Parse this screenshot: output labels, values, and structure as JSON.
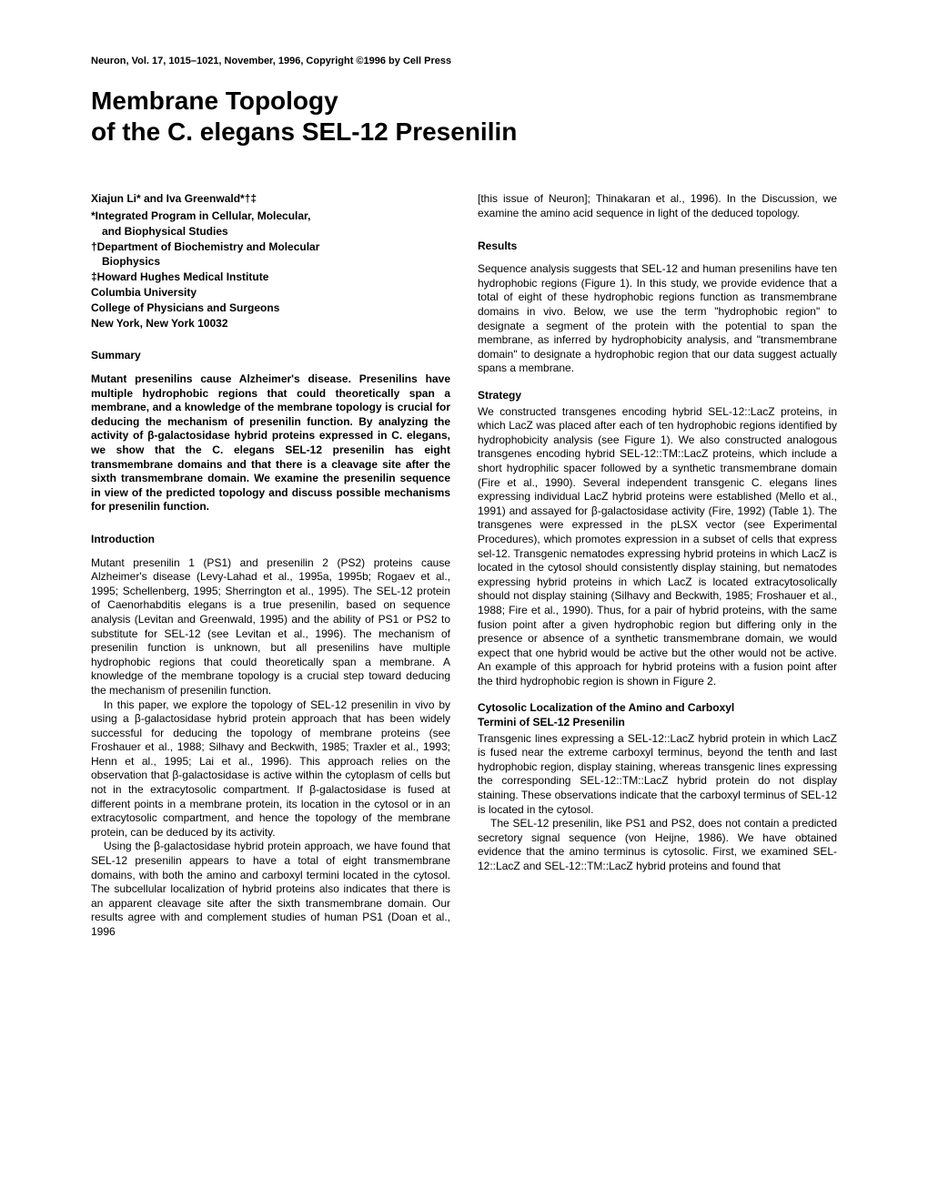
{
  "header": "Neuron, Vol. 17, 1015–1021, November, 1996, Copyright ©1996 by Cell Press",
  "title_line1": "Membrane Topology",
  "title_line2": "of the C. elegans SEL-12 Presenilin",
  "authors": "Xiajun Li* and Iva Greenwald*†‡",
  "affil1": "*Integrated Program in Cellular, Molecular,",
  "affil1b": "and Biophysical Studies",
  "affil2": "†Department of Biochemistry and Molecular",
  "affil2b": "Biophysics",
  "affil3": "‡Howard Hughes Medical Institute",
  "affil4": "Columbia University",
  "affil5": "College of Physicians and Surgeons",
  "affil6": "New York, New York 10032",
  "summary_head": "Summary",
  "summary": "Mutant presenilins cause Alzheimer's disease. Presenilins have multiple hydrophobic regions that could theoretically span a membrane, and a knowledge of the membrane topology is crucial for deducing the mechanism of presenilin function. By analyzing the activity of β-galactosidase hybrid proteins expressed in C. elegans, we show that the C. elegans SEL-12 presenilin has eight transmembrane domains and that there is a cleavage site after the sixth transmembrane domain. We examine the presenilin sequence in view of the predicted topology and discuss possible mechanisms for presenilin function.",
  "intro_head": "Introduction",
  "intro_p1": "Mutant presenilin 1 (PS1) and presenilin 2 (PS2) proteins cause Alzheimer's disease (Levy-Lahad et al., 1995a, 1995b; Rogaev et al., 1995; Schellenberg, 1995; Sherrington et al., 1995). The SEL-12 protein of Caenorhabditis elegans is a true presenilin, based on sequence analysis (Levitan and Greenwald, 1995) and the ability of PS1 or PS2 to substitute for SEL-12 (see Levitan et al., 1996). The mechanism of presenilin function is unknown, but all presenilins have multiple hydrophobic regions that could theoretically span a membrane. A knowledge of the membrane topology is a crucial step toward deducing the mechanism of presenilin function.",
  "intro_p2": "In this paper, we explore the topology of SEL-12 presenilin in vivo by using a β-galactosidase hybrid protein approach that has been widely successful for deducing the topology of membrane proteins (see Froshauer et al., 1988; Silhavy and Beckwith, 1985; Traxler et al., 1993; Henn et al., 1995; Lai et al., 1996). This approach relies on the observation that β-galactosidase is active within the cytoplasm of cells but not in the extracytosolic compartment. If β-galactosidase is fused at different points in a membrane protein, its location in the cytosol or in an extracytosolic compartment, and hence the topology of the membrane protein, can be deduced by its activity.",
  "intro_p3": "Using the β-galactosidase hybrid protein approach, we have found that SEL-12 presenilin appears to have a total of eight transmembrane domains, with both the amino and carboxyl termini located in the cytosol. The subcellular localization of hybrid proteins also indicates that there is an apparent cleavage site after the sixth transmembrane domain. Our results agree with and complement studies of human PS1 (Doan et al., 1996",
  "col2_top": "[this issue of Neuron]; Thinakaran et al., 1996). In the Discussion, we examine the amino acid sequence in light of the deduced topology.",
  "results_head": "Results",
  "results_p1": "Sequence analysis suggests that SEL-12 and human presenilins have ten hydrophobic regions (Figure 1). In this study, we provide evidence that a total of eight of these hydrophobic regions function as transmembrane domains in vivo. Below, we use the term \"hydrophobic region\" to designate a segment of the protein with the potential to span the membrane, as inferred by hydrophobicity analysis, and \"transmembrane domain\" to designate a hydrophobic region that our data suggest actually spans a membrane.",
  "strategy_head": "Strategy",
  "strategy_p1": "We constructed transgenes encoding hybrid SEL-12::LacZ proteins, in which LacZ was placed after each of ten hydrophobic regions identified by hydrophobicity analysis (see Figure 1). We also constructed analogous transgenes encoding hybrid SEL-12::TM::LacZ proteins, which include a short hydrophilic spacer followed by a synthetic transmembrane domain (Fire et al., 1990). Several independent transgenic C. elegans lines expressing individual LacZ hybrid proteins were established (Mello et al., 1991) and assayed for β-galactosidase activity (Fire, 1992) (Table 1). The transgenes were expressed in the pLSX vector (see Experimental Procedures), which promotes expression in a subset of cells that express sel-12. Transgenic nematodes expressing hybrid proteins in which LacZ is located in the cytosol should consistently display staining, but nematodes expressing hybrid proteins in which LacZ is located extracytosolically should not display staining (Silhavy and Beckwith, 1985; Froshauer et al., 1988; Fire et al., 1990). Thus, for a pair of hybrid proteins, with the same fusion point after a given hydrophobic region but differing only in the presence or absence of a synthetic transmembrane domain, we would expect that one hybrid would be active but the other would not be active. An example of this approach for hybrid proteins with a fusion point after the third hydrophobic region is shown in Figure 2.",
  "cyto_head1": "Cytosolic Localization of the Amino and Carboxyl",
  "cyto_head2": "Termini of SEL-12 Presenilin",
  "cyto_p1": "Transgenic lines expressing a SEL-12::LacZ hybrid protein in which LacZ is fused near the extreme carboxyl terminus, beyond the tenth and last hydrophobic region, display staining, whereas transgenic lines expressing the corresponding SEL-12::TM::LacZ hybrid protein do not display staining. These observations indicate that the carboxyl terminus of SEL-12 is located in the cytosol.",
  "cyto_p2": "The SEL-12 presenilin, like PS1 and PS2, does not contain a predicted secretory signal sequence (von Heijne, 1986). We have obtained evidence that the amino terminus is cytosolic. First, we examined SEL-12::LacZ and SEL-12::TM::LacZ hybrid proteins and found that"
}
